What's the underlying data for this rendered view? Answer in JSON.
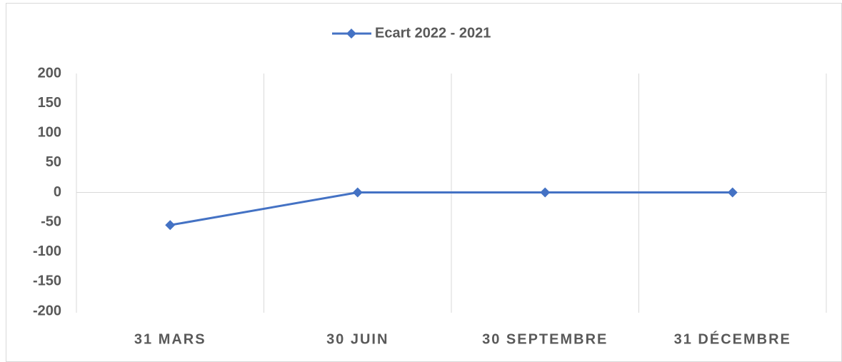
{
  "chart_data": {
    "type": "line",
    "categories": [
      "31 MARS",
      "30 JUIN",
      "30 SEPTEMBRE",
      "31 DÉCEMBRE"
    ],
    "series": [
      {
        "name": "Ecart 2022 - 2021",
        "color": "#4472c4",
        "values": [
          -55,
          0,
          0,
          0
        ]
      }
    ],
    "ylim": [
      -200,
      200
    ],
    "yticks": [
      -200,
      -150,
      -100,
      -50,
      0,
      50,
      100,
      150,
      200
    ],
    "legend": "top"
  }
}
